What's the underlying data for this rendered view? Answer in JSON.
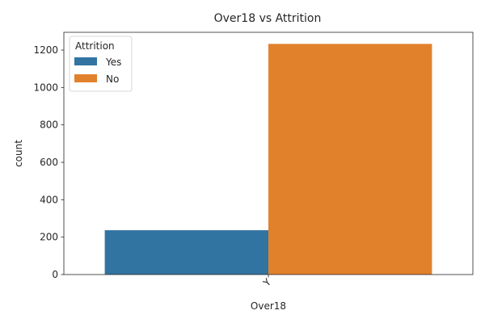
{
  "chart_data": {
    "type": "bar",
    "title": "Over18 vs Attrition",
    "xlabel": "Over18",
    "ylabel": "count",
    "categories": [
      "Y"
    ],
    "series": [
      {
        "name": "Yes",
        "values": [
          237
        ],
        "color": "#3274a1"
      },
      {
        "name": "No",
        "values": [
          1233
        ],
        "color": "#e1812c"
      }
    ],
    "ylim": [
      0,
      1295
    ],
    "yticks": [
      0,
      200,
      400,
      600,
      800,
      1000,
      1200
    ],
    "grid": false,
    "legend": {
      "title": "Attrition",
      "placement": "top-left"
    }
  }
}
